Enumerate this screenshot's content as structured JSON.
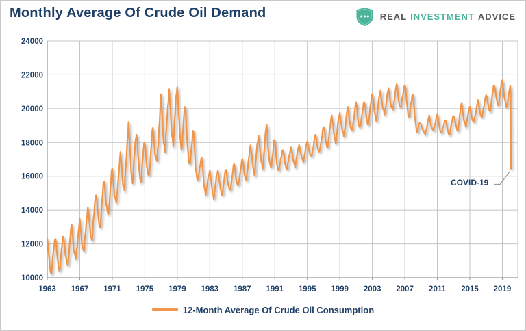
{
  "page": {
    "title": "Monthly Average Of Crude Oil Demand"
  },
  "brand": {
    "word1": "REAL",
    "word2": "INVESTMENT",
    "word3": "ADVICE",
    "shield_color": "#4bb39c"
  },
  "legend": {
    "label": "12-Month Average Of Crude Oil Consumption"
  },
  "annotation": {
    "label": "COVID-19"
  },
  "chart_data": {
    "type": "line",
    "title": "Monthly Average Of Crude Oil Demand",
    "series_name": "12-Month Average Of Crude Oil Consumption",
    "xlabel": "",
    "ylabel": "",
    "xlim": [
      1963,
      2020.9
    ],
    "ylim": [
      10000,
      24000
    ],
    "grid": true,
    "legend_position": "bottom",
    "line_color": "#f0964b",
    "grid_color": "#c4c4c4",
    "axis_color": "#969696",
    "x_ticks": [
      "1963",
      "1967",
      "1971",
      "1975",
      "1979",
      "1983",
      "1987",
      "1991",
      "1995",
      "1999",
      "2003",
      "2007",
      "2011",
      "2015",
      "2019"
    ],
    "y_ticks": [
      24000,
      22000,
      20000,
      18000,
      16000,
      14000,
      12000,
      10000
    ],
    "seasonal_pattern": [
      1.0,
      0.58,
      0.18,
      -0.3,
      -0.62,
      -0.8,
      -1.0,
      -0.68,
      -0.32,
      0.08,
      0.46,
      0.8
    ],
    "annual": {
      "years": [
        1963,
        1964,
        1965,
        1966,
        1967,
        1968,
        1969,
        1970,
        1971,
        1972,
        1973,
        1974,
        1975,
        1976,
        1977,
        1978,
        1979,
        1980,
        1981,
        1982,
        1983,
        1984,
        1985,
        1986,
        1987,
        1988,
        1989,
        1990,
        1991,
        1992,
        1993,
        1994,
        1995,
        1996,
        1997,
        1998,
        1999,
        2000,
        2001,
        2002,
        2003,
        2004,
        2005,
        2006,
        2007,
        2008,
        2009,
        2010,
        2011,
        2012,
        2013,
        2014,
        2015,
        2016,
        2017,
        2018,
        2019,
        2020
      ],
      "winter_peak": [
        12300,
        12470,
        12520,
        13050,
        13320,
        14150,
        15050,
        15850,
        16400,
        17250,
        19150,
        18620,
        18050,
        18820,
        20650,
        21080,
        21420,
        20150,
        18620,
        17050,
        16320,
        16380,
        16420,
        16720,
        17000,
        17820,
        18420,
        19050,
        18150,
        17550,
        17720,
        17850,
        18050,
        18450,
        18950,
        19650,
        19750,
        20050,
        20350,
        20450,
        20950,
        21050,
        21150,
        21420,
        21450,
        20950,
        19050,
        19550,
        19650,
        19350,
        19650,
        20350,
        20050,
        20450,
        20850,
        21500,
        21700,
        21300
      ],
      "summer_trough": [
        10150,
        10300,
        10520,
        10900,
        11280,
        11900,
        12600,
        13320,
        14020,
        14750,
        15700,
        15720,
        15520,
        16320,
        17250,
        17820,
        18120,
        17050,
        16050,
        15250,
        14650,
        14880,
        14950,
        15250,
        15550,
        16050,
        16320,
        16620,
        16180,
        16350,
        16520,
        16720,
        17020,
        17250,
        17550,
        17850,
        18250,
        18550,
        18720,
        18950,
        19150,
        19550,
        19850,
        19950,
        20050,
        18950,
        18350,
        18650,
        18720,
        18350,
        18550,
        18850,
        19050,
        19350,
        19650,
        20050,
        20350,
        19800
      ]
    },
    "covid_tail": [
      [
        2019.98,
        21350
      ],
      [
        2020.02,
        20450
      ],
      [
        2020.06,
        16450
      ]
    ],
    "covid_annotation": {
      "label": "COVID-19",
      "points_to": [
        2020.06,
        16450
      ]
    }
  }
}
